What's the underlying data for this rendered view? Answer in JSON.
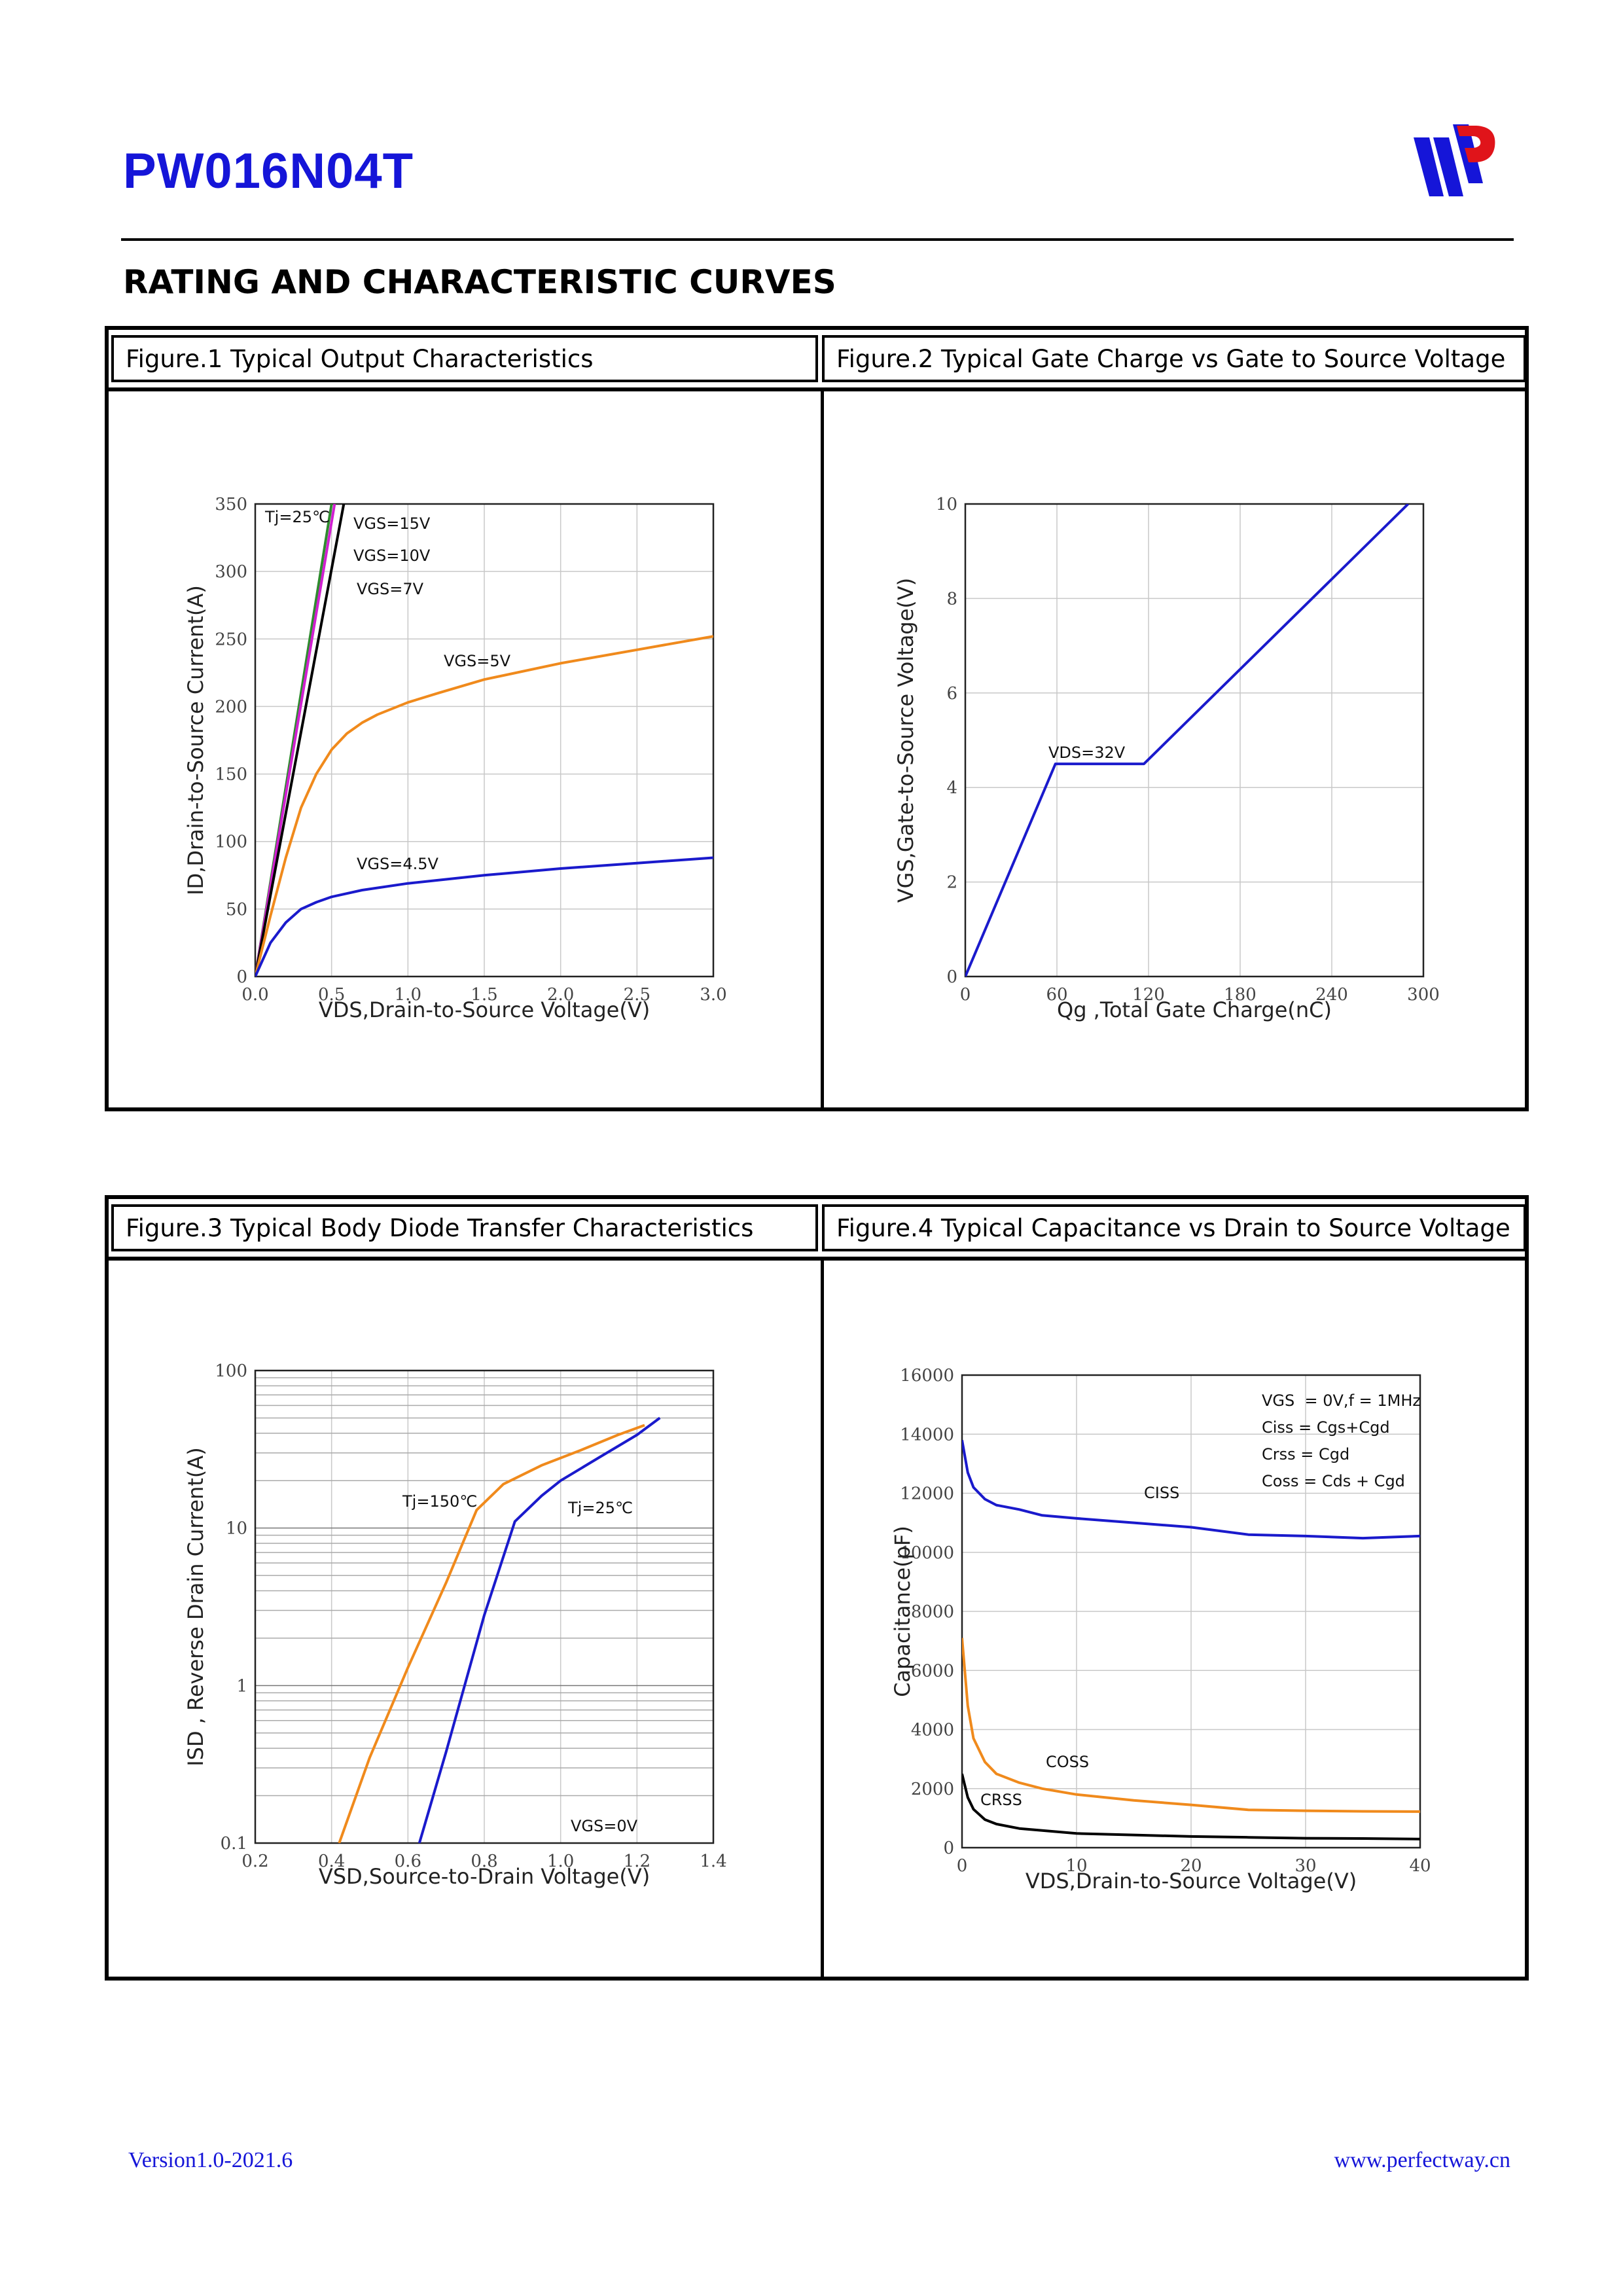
{
  "header": {
    "part_number": "PW016N04T",
    "logo": "pw-logo"
  },
  "section_title": "RATING AND CHARACTERISTIC CURVES",
  "figures": {
    "fig1": "Figure.1 Typical Output Characteristics",
    "fig2": "Figure.2 Typical Gate Charge vs Gate to Source Voltage",
    "fig3": "Figure.3 Typical Body Diode Transfer Characteristics",
    "fig4": "Figure.4 Typical Capacitance vs Drain to Source Voltage"
  },
  "footer": {
    "version": "Version1.0-2021.6",
    "website": "www.perfectway.cn"
  },
  "chart_data": [
    {
      "type": "line",
      "xlabel": "VDS,Drain-to-Source Voltage(V)",
      "ylabel": "ID,Drain-to-Source Current(A)",
      "xlim": [
        0,
        3.0
      ],
      "ylim": [
        0,
        350
      ],
      "xticks": [
        "0.0",
        "0.5",
        "1.0",
        "1.5",
        "2.0",
        "2.5",
        "3.0"
      ],
      "yticks": [
        "0",
        "50",
        "100",
        "150",
        "200",
        "250",
        "300",
        "350"
      ],
      "grid": true,
      "annotations": [
        "Tj=25℃"
      ],
      "series": [
        {
          "name": "VGS=15V",
          "color": "#2e8b2e",
          "x": [
            0,
            0.5
          ],
          "y": [
            0,
            350
          ]
        },
        {
          "name": "VGS=10V",
          "color": "#d020d0",
          "x": [
            0,
            0.52
          ],
          "y": [
            0,
            350
          ]
        },
        {
          "name": "VGS=7V",
          "color": "#000000",
          "x": [
            0,
            0.58
          ],
          "y": [
            0,
            350
          ]
        },
        {
          "name": "VGS=5V",
          "color": "#f08a1c",
          "x": [
            0,
            0.1,
            0.2,
            0.3,
            0.4,
            0.5,
            0.6,
            0.7,
            0.8,
            1.0,
            1.2,
            1.5,
            2.0,
            2.5,
            3.0
          ],
          "y": [
            0,
            45,
            88,
            125,
            150,
            168,
            180,
            188,
            194,
            203,
            210,
            220,
            232,
            242,
            252
          ]
        },
        {
          "name": "VGS=4.5V",
          "color": "#1a1acc",
          "x": [
            0,
            0.1,
            0.2,
            0.3,
            0.4,
            0.5,
            0.7,
            1.0,
            1.5,
            2.0,
            2.5,
            3.0
          ],
          "y": [
            0,
            25,
            40,
            50,
            55,
            59,
            64,
            69,
            75,
            80,
            84,
            88
          ]
        }
      ]
    },
    {
      "type": "line",
      "xlabel": "Qg ,Total Gate Charge(nC)",
      "ylabel": "VGS,Gate-to-Source Voltage(V)",
      "xlim": [
        0,
        300
      ],
      "ylim": [
        0,
        10
      ],
      "xticks": [
        "0",
        "60",
        "120",
        "180",
        "240",
        "300"
      ],
      "yticks": [
        "0",
        "2",
        "4",
        "6",
        "8",
        "10"
      ],
      "grid": true,
      "series": [
        {
          "name": "VDS=32V",
          "color": "#1a1acc",
          "x": [
            0,
            59,
            117,
            290
          ],
          "y": [
            0,
            4.5,
            4.5,
            10
          ]
        }
      ]
    },
    {
      "type": "line",
      "xlabel": "VSD,Source-to-Drain Voltage(V)",
      "ylabel": "ISD , Reverse Drain Current(A)",
      "xlim": [
        0.2,
        1.4
      ],
      "ylim": [
        0.1,
        100
      ],
      "yscale": "log",
      "xticks": [
        "0.2",
        "0.4",
        "0.6",
        "0.8",
        "1.0",
        "1.2",
        "1.4"
      ],
      "yticks": [
        "0.1",
        "1",
        "10",
        "100"
      ],
      "grid": true,
      "annotations": [
        "VGS=0V"
      ],
      "series": [
        {
          "name": "Tj=150℃",
          "color": "#f08a1c",
          "x": [
            0.42,
            0.5,
            0.6,
            0.7,
            0.78,
            0.85,
            0.95,
            1.05,
            1.15,
            1.22
          ],
          "y": [
            0.1,
            0.35,
            1.3,
            4.5,
            13,
            19,
            25,
            31,
            39,
            45
          ]
        },
        {
          "name": "Tj=25℃",
          "color": "#1a1acc",
          "x": [
            0.63,
            0.7,
            0.8,
            0.88,
            0.95,
            1.0,
            1.1,
            1.2,
            1.26
          ],
          "y": [
            0.1,
            0.38,
            2.8,
            11,
            16,
            20,
            28,
            39,
            50
          ]
        }
      ]
    },
    {
      "type": "line",
      "xlabel": "VDS,Drain-to-Source Voltage(V)",
      "ylabel": "Capacitance(pF)",
      "xlim": [
        0,
        40
      ],
      "ylim": [
        0,
        16000
      ],
      "xticks": [
        "0",
        "10",
        "20",
        "30",
        "40"
      ],
      "yticks": [
        "0",
        "2000",
        "4000",
        "6000",
        "8000",
        "10000",
        "12000",
        "14000",
        "16000"
      ],
      "grid": true,
      "annotations": [
        "VGS  = 0V,f = 1MHz",
        "Ciss = Cgs+Cgd",
        "Crss = Cgd",
        "Coss = Cds + Cgd"
      ],
      "series": [
        {
          "name": "CISS",
          "color": "#1a1acc",
          "x": [
            0,
            0.5,
            1,
            2,
            3,
            5,
            7,
            10,
            15,
            20,
            25,
            30,
            35,
            40
          ],
          "y": [
            13800,
            12700,
            12200,
            11800,
            11600,
            11450,
            11250,
            11150,
            11000,
            10850,
            10600,
            10550,
            10480,
            10550
          ]
        },
        {
          "name": "COSS",
          "color": "#f08a1c",
          "x": [
            0,
            0.5,
            1,
            2,
            3,
            5,
            7,
            10,
            15,
            20,
            25,
            30,
            35,
            40
          ],
          "y": [
            7100,
            4800,
            3700,
            2900,
            2500,
            2200,
            2000,
            1800,
            1600,
            1450,
            1280,
            1250,
            1230,
            1220
          ]
        },
        {
          "name": "CRSS",
          "color": "#000000",
          "x": [
            0,
            0.5,
            1,
            2,
            3,
            5,
            7,
            10,
            15,
            20,
            25,
            30,
            35,
            40
          ],
          "y": [
            2500,
            1700,
            1300,
            950,
            800,
            650,
            580,
            480,
            430,
            380,
            350,
            320,
            310,
            290
          ]
        }
      ]
    }
  ]
}
